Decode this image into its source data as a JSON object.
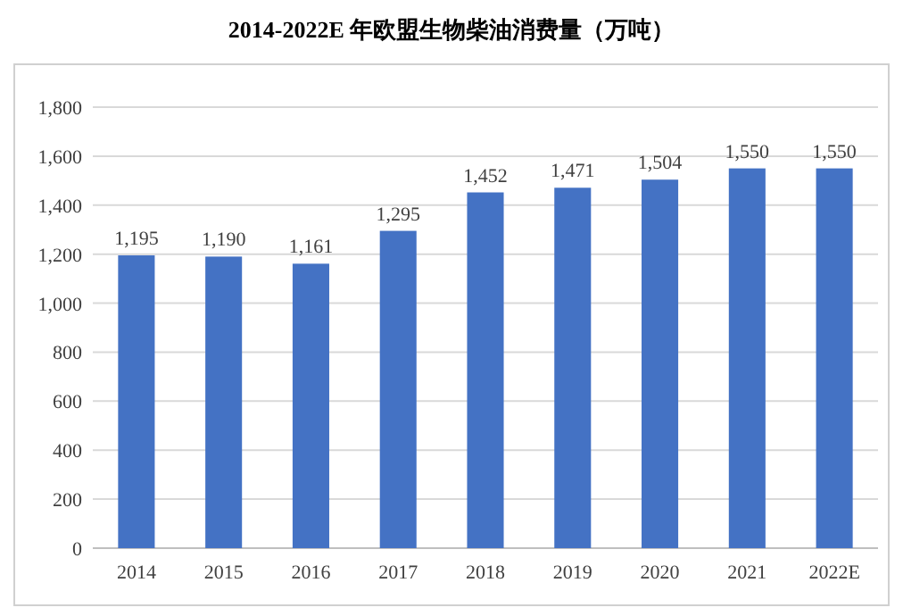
{
  "chart_data": {
    "type": "bar",
    "title": "2014-2022E 年欧盟生物柴油消费量（万吨）",
    "categories": [
      "2014",
      "2015",
      "2016",
      "2017",
      "2018",
      "2019",
      "2020",
      "2021",
      "2022E"
    ],
    "values": [
      1195,
      1190,
      1161,
      1295,
      1452,
      1471,
      1504,
      1550,
      1550
    ],
    "value_labels": [
      "1,195",
      "1,190",
      "1,161",
      "1,295",
      "1,452",
      "1,471",
      "1,504",
      "1,550",
      "1,550"
    ],
    "color": "#4472c4",
    "ylim": [
      0,
      1800
    ],
    "yticks": [
      0,
      {
        "value": 200,
        "label": "200"
      },
      {
        "value": 400,
        "label": "400"
      },
      {
        "value": 600,
        "label": "600"
      },
      {
        "value": 800,
        "label": "800"
      },
      {
        "value": 1000,
        "label": "1,000"
      },
      {
        "value": 1200,
        "label": "1,200"
      },
      {
        "value": 1400,
        "label": "1,400"
      },
      {
        "value": 1600,
        "label": "1,600"
      },
      {
        "value": 1800,
        "label": "1,800"
      }
    ],
    "grid": "y"
  }
}
